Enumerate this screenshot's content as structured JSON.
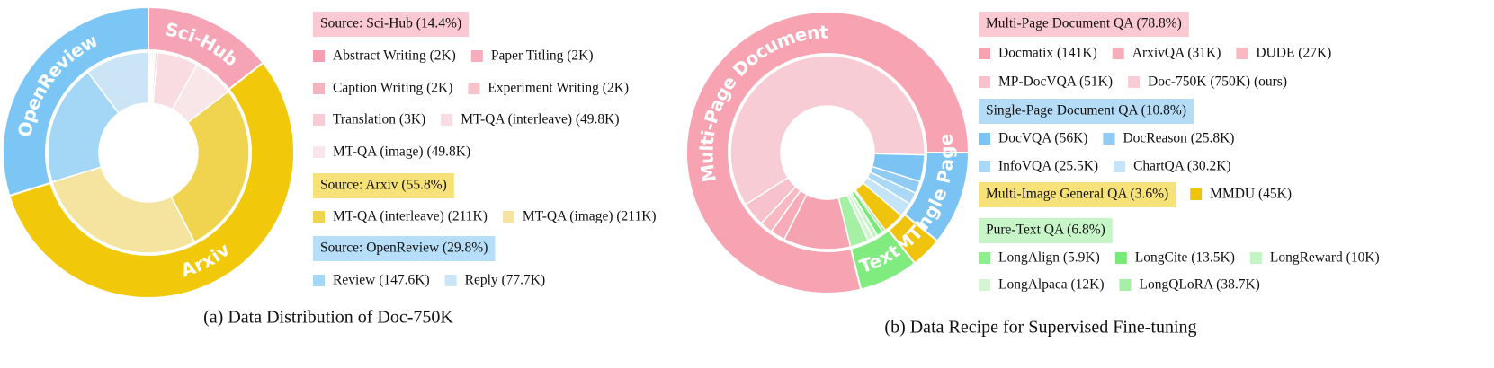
{
  "chart_data": [
    {
      "type": "sunburst",
      "caption": "(a) Data Distribution of Doc-750K",
      "groups": [
        {
          "name": "Sci-Hub",
          "label": "Source: Sci-Hub (14.4%)",
          "value": 14.4,
          "color": "#f5a3b5",
          "label_color": "#fac9d3",
          "items": [
            {
              "label": "Abstract Writing (2K)",
              "value": 2,
              "color": "#f4a0b2"
            },
            {
              "label": "Paper Titling (2K)",
              "value": 2,
              "color": "#f6aebd"
            },
            {
              "label": "Caption Writing (2K)",
              "value": 2,
              "color": "#f3b4c0"
            },
            {
              "label": "Experiment Writing (2K)",
              "value": 2,
              "color": "#f6c3cd"
            },
            {
              "label": "Translation (3K)",
              "value": 3,
              "color": "#f7ccd4"
            },
            {
              "label": "MT-QA (interleave) (49.8K)",
              "value": 49.8,
              "color": "#f8dce1"
            },
            {
              "label": "MT-QA (image) (49.8K)",
              "value": 49.8,
              "color": "#f9e6e9"
            }
          ]
        },
        {
          "name": "Arxiv",
          "label": "Source: Arxiv (55.8%)",
          "value": 55.8,
          "color": "#f1c80a",
          "label_color": "#f7e27a",
          "items": [
            {
              "label": "MT-QA (interleave) (211K)",
              "value": 211,
              "color": "#f0d34e"
            },
            {
              "label": "MT-QA (image) (211K)",
              "value": 211,
              "color": "#f5e4a0"
            }
          ]
        },
        {
          "name": "OpenReview",
          "label": "Source: OpenReview (29.8%)",
          "value": 29.8,
          "color": "#7cc6f6",
          "label_color": "#b7def8",
          "items": [
            {
              "label": "Review (147.6K)",
              "value": 147.6,
              "color": "#a4d6f6"
            },
            {
              "label": "Reply (77.7K)",
              "value": 77.7,
              "color": "#cbe5f7"
            }
          ]
        }
      ]
    },
    {
      "type": "sunburst",
      "caption": "(b) Data Recipe for Supervised Fine-tuning",
      "groups": [
        {
          "name": "Multi-Page Document",
          "label": "Multi-Page Document QA (78.8%)",
          "value": 78.8,
          "color": "#f7a3b1",
          "label_color": "#fac9d2",
          "items": [
            {
              "label": "Docmatix (141K)",
              "value": 141,
              "color": "#f6a3b1"
            },
            {
              "label": "ArxivQA (31K)",
              "value": 31,
              "color": "#f7adb9"
            },
            {
              "label": "DUDE (27K)",
              "value": 27,
              "color": "#f8b9c3"
            },
            {
              "label": "MP-DocVQA (51K)",
              "value": 51,
              "color": "#f7c2cb"
            },
            {
              "label": "Doc-750K (750K) (ours)",
              "value": 750,
              "color": "#f8ccd4"
            }
          ]
        },
        {
          "name": "Single Page",
          "label": "Single-Page Document QA (10.8%)",
          "value": 10.8,
          "color": "#7bc3f3",
          "label_color": "#b5dcf7",
          "items": [
            {
              "label": "DocVQA (56K)",
              "value": 56,
              "color": "#7bc3f2"
            },
            {
              "label": "DocReason (25.8K)",
              "value": 25.8,
              "color": "#8fcbf3"
            },
            {
              "label": "InfoVQA (25.5K)",
              "value": 25.5,
              "color": "#aad8f6"
            },
            {
              "label": "ChartQA (30.2K)",
              "value": 30.2,
              "color": "#c6e4f8"
            }
          ]
        },
        {
          "name": "MTI",
          "label": "Multi-Image General QA (3.6%)",
          "value": 3.6,
          "color": "#f0c40c",
          "label_color": "#f7e27a",
          "items": [
            {
              "label": "MMDU (45K)",
              "value": 45,
              "color": "#f0c40c"
            }
          ]
        },
        {
          "name": "Text",
          "label": "Pure-Text QA (6.8%)",
          "value": 6.8,
          "color": "#80ec80",
          "label_color": "#c8f5c8",
          "items": [
            {
              "label": "LongAlign (5.9K)",
              "value": 5.9,
              "color": "#8fef8f"
            },
            {
              "label": "LongCite (13.5K)",
              "value": 13.5,
              "color": "#78ea78"
            },
            {
              "label": "LongReward (10K)",
              "value": 10,
              "color": "#c4f4c4"
            },
            {
              "label": "LongAlpaca (12K)",
              "value": 12,
              "color": "#d4f5d4"
            },
            {
              "label": "LongQLoRA (38.7K)",
              "value": 38.7,
              "color": "#a6f0a6"
            }
          ]
        }
      ]
    }
  ]
}
